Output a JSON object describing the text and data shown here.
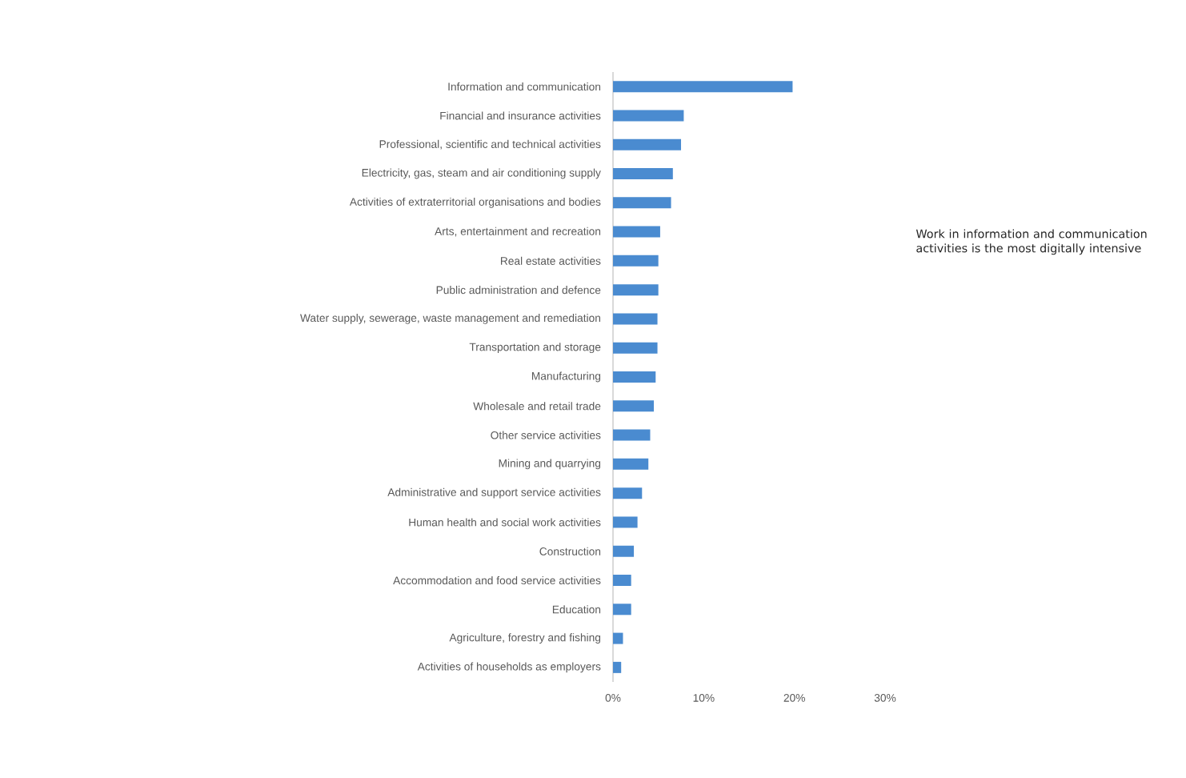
{
  "chart_data": {
    "type": "bar",
    "orientation": "horizontal",
    "categories": [
      "Information and communication",
      "Financial and insurance activities",
      "Professional, scientific and technical activities",
      "Electricity, gas, steam and air conditioning supply",
      "Activities of extraterritorial organisations and bodies",
      "Arts, entertainment and recreation",
      "Real estate activities",
      "Public administration and defence",
      "Water supply, sewerage, waste management and remediation",
      "Transportation and storage",
      "Manufacturing",
      "Wholesale and retail trade",
      "Other service activities",
      "Mining and quarrying",
      "Administrative and support service activities",
      "Human health and social work activities",
      "Construction",
      "Accommodation and food service activities",
      "Education",
      "Agriculture, forestry and fishing",
      "Activities of households as employers"
    ],
    "values": [
      19.8,
      7.8,
      7.5,
      6.6,
      6.4,
      5.2,
      5.0,
      5.0,
      4.9,
      4.9,
      4.7,
      4.5,
      4.1,
      3.9,
      3.2,
      2.7,
      2.3,
      2.0,
      2.0,
      1.1,
      0.9
    ],
    "color": "#4a8bd0",
    "xlim": [
      0,
      30
    ],
    "xticks": [
      {
        "value": 0,
        "label": "0%"
      },
      {
        "value": 10,
        "label": "10%"
      },
      {
        "value": 20,
        "label": "20%"
      },
      {
        "value": 30,
        "label": "30%"
      }
    ],
    "annotations": [
      "Work in information and communication activities is the most digitally intensive"
    ]
  }
}
